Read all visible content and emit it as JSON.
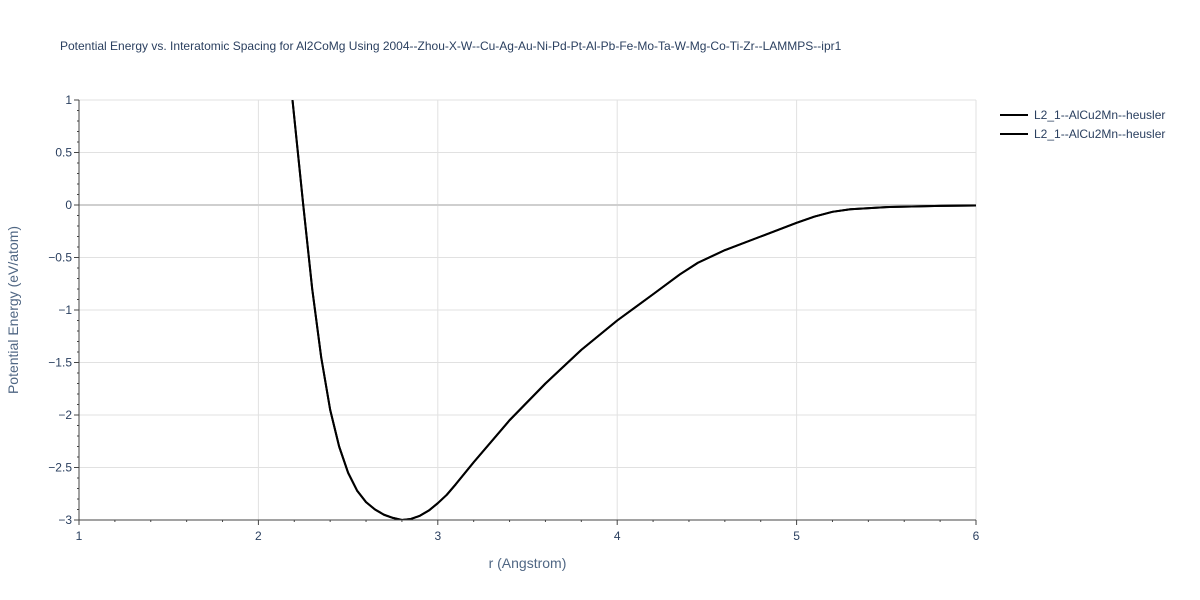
{
  "chart_data": {
    "type": "line",
    "title": "Potential Energy vs. Interatomic Spacing for Al2CoMg Using 2004--Zhou-X-W--Cu-Ag-Au-Ni-Pd-Pt-Al-Pb-Fe-Mo-Ta-W-Mg-Co-Ti-Zr--LAMMPS--ipr1",
    "xlabel": "r (Angstrom)",
    "ylabel": "Potential Energy (eV/atom)",
    "xlim": [
      1,
      6
    ],
    "ylim": [
      -3,
      1
    ],
    "xticks": [
      1,
      2,
      3,
      4,
      5,
      6
    ],
    "xtick_labels": [
      "1",
      "2",
      "3",
      "4",
      "5",
      "6"
    ],
    "yticks": [
      1,
      0.5,
      0,
      -0.5,
      -1,
      -1.5,
      -2,
      -2.5,
      -3
    ],
    "ytick_labels": [
      "1",
      "0.5",
      "0",
      "−0.5",
      "−1",
      "−1.5",
      "−2",
      "−2.5",
      "−3"
    ],
    "grid": true,
    "legend_position": "top-right",
    "series": [
      {
        "name": "L2_1--AlCu2Mn--heusler",
        "color": "#000000",
        "x": [
          2.19,
          2.25,
          2.3,
          2.35,
          2.4,
          2.45,
          2.5,
          2.55,
          2.6,
          2.65,
          2.7,
          2.75,
          2.8,
          2.85,
          2.9,
          2.95,
          3.0,
          3.05,
          3.1,
          3.2,
          3.4,
          3.6,
          3.8,
          4.0,
          4.2,
          4.35,
          4.45,
          4.6,
          4.8,
          5.0,
          5.1,
          5.2,
          5.3,
          5.5,
          5.8,
          6.0
        ],
        "y": [
          1.0,
          0.0,
          -0.8,
          -1.45,
          -1.95,
          -2.3,
          -2.55,
          -2.72,
          -2.83,
          -2.9,
          -2.95,
          -2.98,
          -3.0,
          -2.99,
          -2.96,
          -2.91,
          -2.84,
          -2.76,
          -2.66,
          -2.45,
          -2.05,
          -1.7,
          -1.38,
          -1.1,
          -0.85,
          -0.66,
          -0.55,
          -0.43,
          -0.3,
          -0.17,
          -0.11,
          -0.065,
          -0.04,
          -0.02,
          -0.008,
          -0.005
        ]
      },
      {
        "name": "L2_1--AlCu2Mn--heusler",
        "color": "#000000",
        "x": [
          2.19,
          2.25,
          2.3,
          2.35,
          2.4,
          2.45,
          2.5,
          2.55,
          2.6,
          2.65,
          2.7,
          2.75,
          2.8,
          2.85,
          2.9,
          2.95,
          3.0,
          3.05,
          3.1,
          3.2,
          3.4,
          3.6,
          3.8,
          4.0,
          4.2,
          4.35,
          4.45,
          4.6,
          4.8,
          5.0,
          5.1,
          5.2,
          5.3,
          5.5,
          5.8,
          6.0
        ],
        "y": [
          1.0,
          0.0,
          -0.8,
          -1.45,
          -1.95,
          -2.3,
          -2.55,
          -2.72,
          -2.83,
          -2.9,
          -2.95,
          -2.98,
          -3.0,
          -2.99,
          -2.96,
          -2.91,
          -2.84,
          -2.76,
          -2.66,
          -2.45,
          -2.05,
          -1.7,
          -1.38,
          -1.1,
          -0.85,
          -0.66,
          -0.55,
          -0.43,
          -0.3,
          -0.17,
          -0.11,
          -0.065,
          -0.04,
          -0.02,
          -0.008,
          -0.005
        ]
      }
    ]
  }
}
